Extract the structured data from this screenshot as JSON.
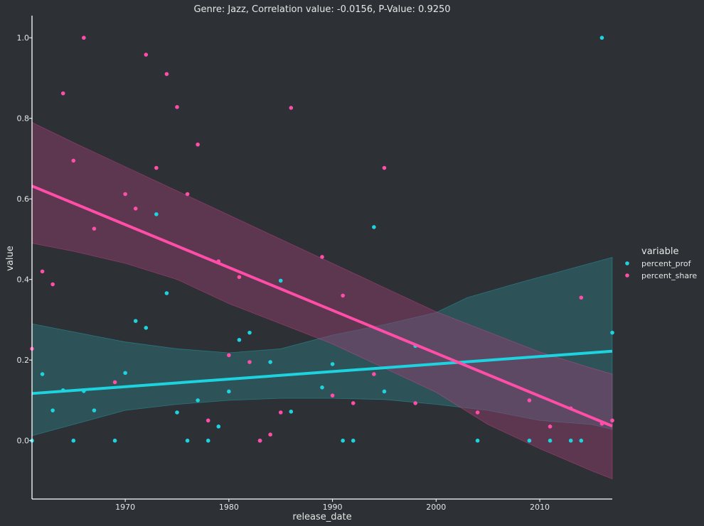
{
  "chart_data": {
    "type": "scatter",
    "title": "Genre: Jazz, Correlation value: -0.0156, P-Value: 0.9250",
    "xlabel": "release_date",
    "ylabel": "value",
    "xlim": [
      1961,
      2017
    ],
    "ylim": [
      -0.145,
      1.055
    ],
    "xticks": [
      1970,
      1980,
      1990,
      2000,
      2010
    ],
    "yticks": [
      0.0,
      0.2,
      0.4,
      0.6,
      0.8,
      1.0
    ],
    "ytick_labels": [
      "0.0",
      "0.2",
      "0.4",
      "0.6",
      "0.8",
      "1.0"
    ],
    "grid": false,
    "legend": {
      "title": "variable",
      "placement": "right",
      "entries": [
        "percent_prof",
        "percent_share"
      ]
    },
    "series": [
      {
        "name": "percent_prof",
        "color": "#1ed3e0",
        "points": [
          [
            1961,
            0.0
          ],
          [
            1962,
            0.165
          ],
          [
            1963,
            0.075
          ],
          [
            1964,
            0.125
          ],
          [
            1965,
            0.0
          ],
          [
            1966,
            0.123
          ],
          [
            1967,
            0.075
          ],
          [
            1969,
            0.0
          ],
          [
            1970,
            0.168
          ],
          [
            1971,
            0.297
          ],
          [
            1972,
            0.28
          ],
          [
            1973,
            0.562
          ],
          [
            1974,
            0.366
          ],
          [
            1975,
            0.07
          ],
          [
            1976,
            0.0
          ],
          [
            1977,
            0.1
          ],
          [
            1978,
            0.0
          ],
          [
            1979,
            0.035
          ],
          [
            1980,
            0.122
          ],
          [
            1981,
            0.25
          ],
          [
            1982,
            0.268
          ],
          [
            1983,
            0.0
          ],
          [
            1984,
            0.195
          ],
          [
            1985,
            0.397
          ],
          [
            1986,
            0.072
          ],
          [
            1989,
            0.132
          ],
          [
            1990,
            0.19
          ],
          [
            1991,
            0.0
          ],
          [
            1992,
            0.0
          ],
          [
            1994,
            0.53
          ],
          [
            1995,
            0.122
          ],
          [
            1998,
            0.235
          ],
          [
            2004,
            0.0
          ],
          [
            2009,
            0.0
          ],
          [
            2011,
            0.0
          ],
          [
            2013,
            0.0
          ],
          [
            2014,
            0.0
          ],
          [
            2016,
            1.0
          ],
          [
            2017,
            0.268
          ]
        ],
        "regression": {
          "line": [
            [
              1961,
              0.117
            ],
            [
              2017,
              0.222
            ]
          ],
          "ci_upper": [
            [
              1961,
              0.29
            ],
            [
              1965,
              0.27
            ],
            [
              1970,
              0.245
            ],
            [
              1975,
              0.228
            ],
            [
              1980,
              0.218
            ],
            [
              1985,
              0.228
            ],
            [
              1990,
              0.262
            ],
            [
              1995,
              0.288
            ],
            [
              2000,
              0.318
            ],
            [
              2003,
              0.355
            ],
            [
              2008,
              0.392
            ],
            [
              2012,
              0.42
            ],
            [
              2017,
              0.455
            ]
          ],
          "ci_lower": [
            [
              1961,
              0.012
            ],
            [
              1965,
              0.04
            ],
            [
              1970,
              0.075
            ],
            [
              1975,
              0.09
            ],
            [
              1980,
              0.1
            ],
            [
              1985,
              0.105
            ],
            [
              1990,
              0.105
            ],
            [
              1995,
              0.102
            ],
            [
              2000,
              0.09
            ],
            [
              2005,
              0.075
            ],
            [
              2010,
              0.05
            ],
            [
              2015,
              0.04
            ],
            [
              2017,
              0.028
            ]
          ]
        }
      },
      {
        "name": "percent_share",
        "color": "#ff4ea8",
        "points": [
          [
            1961,
            0.228
          ],
          [
            1962,
            0.42
          ],
          [
            1963,
            0.388
          ],
          [
            1964,
            0.862
          ],
          [
            1965,
            0.695
          ],
          [
            1966,
            1.0
          ],
          [
            1967,
            0.526
          ],
          [
            1969,
            0.145
          ],
          [
            1970,
            0.612
          ],
          [
            1971,
            0.576
          ],
          [
            1972,
            0.958
          ],
          [
            1973,
            0.677
          ],
          [
            1974,
            0.91
          ],
          [
            1975,
            0.828
          ],
          [
            1976,
            0.612
          ],
          [
            1977,
            0.735
          ],
          [
            1978,
            0.05
          ],
          [
            1979,
            0.445
          ],
          [
            1980,
            0.212
          ],
          [
            1981,
            0.406
          ],
          [
            1982,
            0.195
          ],
          [
            1983,
            0.0
          ],
          [
            1984,
            0.015
          ],
          [
            1985,
            0.07
          ],
          [
            1986,
            0.826
          ],
          [
            1989,
            0.456
          ],
          [
            1990,
            0.112
          ],
          [
            1991,
            0.36
          ],
          [
            1992,
            0.093
          ],
          [
            1994,
            0.165
          ],
          [
            1995,
            0.677
          ],
          [
            1998,
            0.093
          ],
          [
            2004,
            0.07
          ],
          [
            2009,
            0.1
          ],
          [
            2011,
            0.035
          ],
          [
            2013,
            0.08
          ],
          [
            2014,
            0.355
          ],
          [
            2016,
            0.042
          ],
          [
            2017,
            0.05
          ]
        ],
        "regression": {
          "line": [
            [
              1961,
              0.632
            ],
            [
              2017,
              0.036
            ]
          ],
          "ci_upper": [
            [
              1961,
              0.79
            ],
            [
              1965,
              0.74
            ],
            [
              1970,
              0.68
            ],
            [
              1975,
              0.62
            ],
            [
              1980,
              0.56
            ],
            [
              1985,
              0.5
            ],
            [
              1990,
              0.44
            ],
            [
              1995,
              0.38
            ],
            [
              2000,
              0.32
            ],
            [
              2005,
              0.27
            ],
            [
              2010,
              0.22
            ],
            [
              2015,
              0.18
            ],
            [
              2017,
              0.165
            ]
          ],
          "ci_lower": [
            [
              1961,
              0.49
            ],
            [
              1965,
              0.47
            ],
            [
              1970,
              0.44
            ],
            [
              1975,
              0.4
            ],
            [
              1980,
              0.34
            ],
            [
              1985,
              0.29
            ],
            [
              1990,
              0.24
            ],
            [
              1995,
              0.18
            ],
            [
              2000,
              0.12
            ],
            [
              2005,
              0.04
            ],
            [
              2010,
              -0.02
            ],
            [
              2015,
              -0.075
            ],
            [
              2017,
              -0.095
            ]
          ]
        }
      }
    ]
  }
}
